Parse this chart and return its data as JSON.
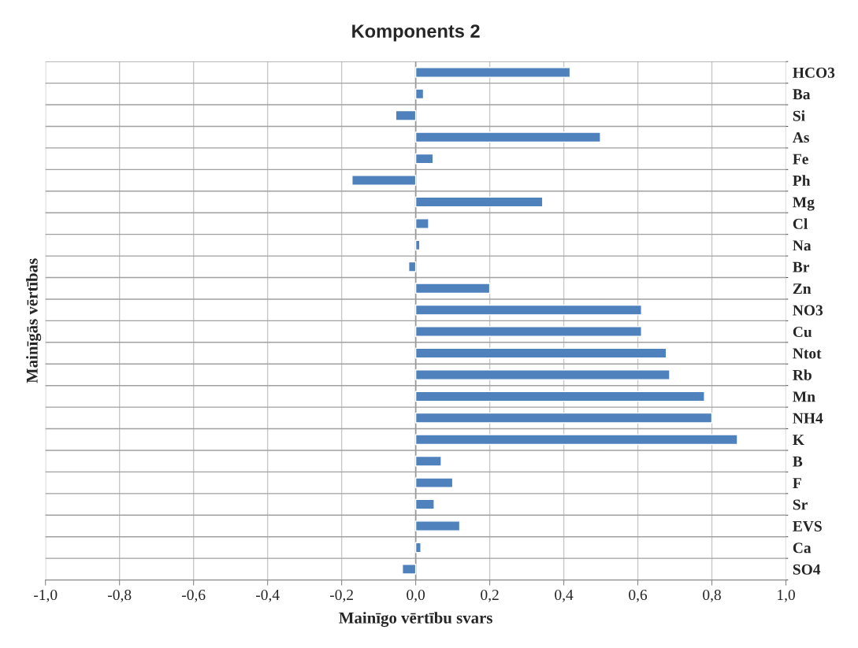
{
  "chart_data": {
    "type": "bar",
    "orientation": "horizontal",
    "title": "Komponents 2",
    "xlabel": "Mainīgo vērtību svars",
    "ylabel": "Mainīgās vērtības",
    "categories": [
      "HCO3",
      "Ba",
      "Si",
      "As",
      "Fe",
      "Ph",
      "Mg",
      "Cl",
      "Na",
      "Br",
      "Zn",
      "NO3",
      "Cu",
      "Ntot",
      "Rb",
      "Mn",
      "NH4",
      "K",
      "B",
      "F",
      "Sr",
      "EVS",
      "Ca",
      "SO4"
    ],
    "values": [
      0.417,
      0.021,
      -0.054,
      0.499,
      0.047,
      -0.172,
      0.343,
      0.035,
      0.011,
      -0.019,
      0.2,
      0.61,
      0.61,
      0.677,
      0.686,
      0.78,
      0.8,
      0.869,
      0.069,
      0.1,
      0.05,
      0.119,
      0.014,
      -0.036
    ],
    "color": "#4f81bd",
    "xlim": [
      -1,
      1
    ],
    "xticks": [
      {
        "value": -1,
        "label": "-1,0"
      },
      {
        "value": -0.8,
        "label": "-0,8"
      },
      {
        "value": -0.6,
        "label": "-0,6"
      },
      {
        "value": -0.4,
        "label": "-0,4"
      },
      {
        "value": -0.2,
        "label": "-0,2"
      },
      {
        "value": 0,
        "label": "0,0"
      },
      {
        "value": 0.2,
        "label": "0,2"
      },
      {
        "value": 0.4,
        "label": "0,4"
      },
      {
        "value": 0.6,
        "label": "0,6"
      },
      {
        "value": 0.8,
        "label": "0,8"
      },
      {
        "value": 1,
        "label": "1,0"
      }
    ],
    "grid": true,
    "legend": false
  }
}
